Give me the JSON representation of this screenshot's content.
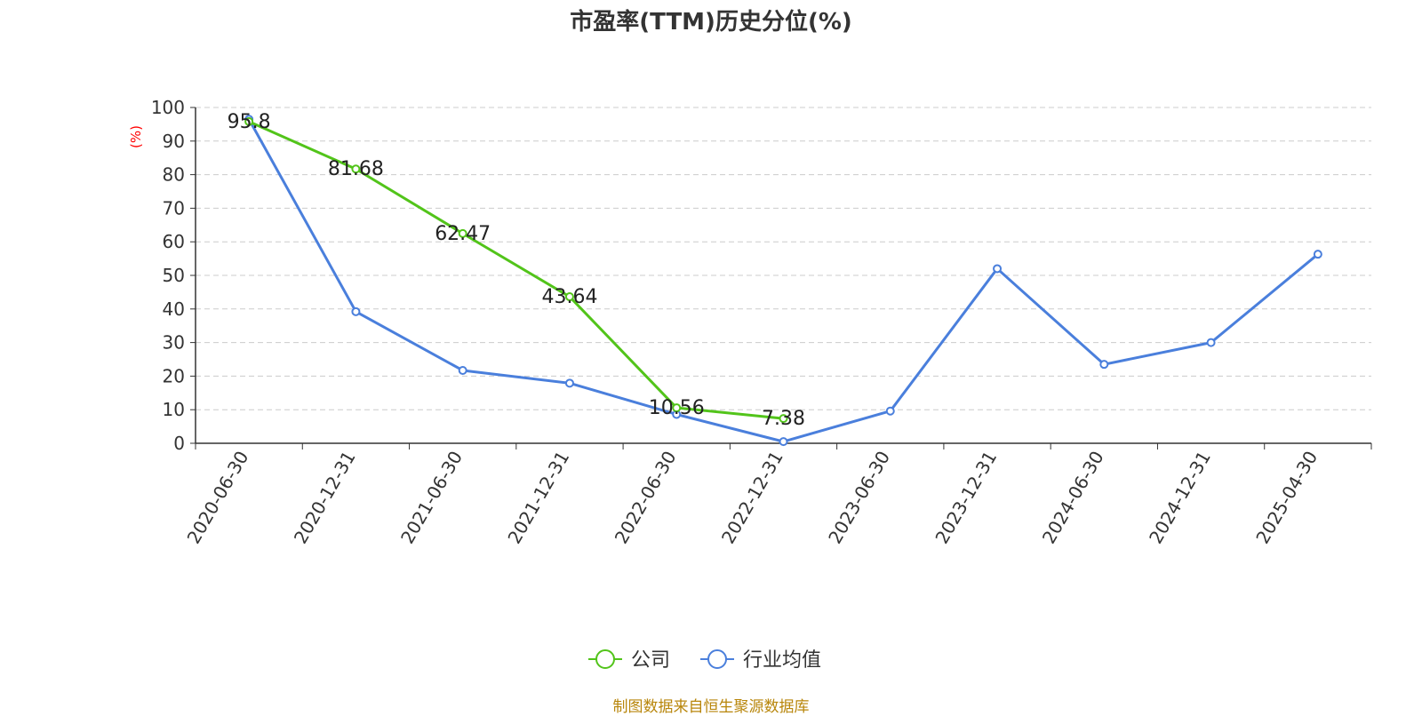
{
  "chart_data": {
    "type": "line",
    "title": "市盈率(TTM)历史分位(%)",
    "ylabel": "(%)",
    "ylim": [
      0,
      100
    ],
    "yticks": [
      0,
      10,
      20,
      30,
      40,
      50,
      60,
      70,
      80,
      90,
      100
    ],
    "categories": [
      "2020-06-30",
      "2020-12-31",
      "2021-06-30",
      "2021-12-31",
      "2022-06-30",
      "2022-12-31",
      "2023-06-30",
      "2023-12-31",
      "2024-06-30",
      "2024-12-31",
      "2025-04-30"
    ],
    "series": [
      {
        "name": "公司",
        "color": "#52c41a",
        "values": [
          95.8,
          81.68,
          62.47,
          43.64,
          10.56,
          7.38,
          null,
          null,
          null,
          null,
          null
        ],
        "labels": [
          "95.8",
          "81.68",
          "62.47",
          "43.64",
          "10.56",
          "7.38",
          null,
          null,
          null,
          null,
          null
        ]
      },
      {
        "name": "行业均值",
        "color": "#4a7fdc",
        "values": [
          96.5,
          39.2,
          21.7,
          17.9,
          8.6,
          0.5,
          9.6,
          52,
          23.5,
          30,
          56.3
        ]
      }
    ],
    "grid": "horizontal-dashed",
    "legend_position": "bottom-center",
    "source": "制图数据来自恒生聚源数据库"
  }
}
